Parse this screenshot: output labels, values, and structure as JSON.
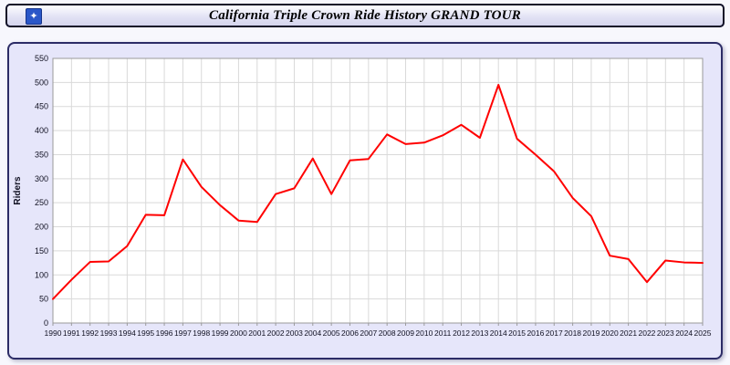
{
  "header": {
    "title": "California Triple Crown Ride History GRAND TOUR",
    "logo_glyph": "✦"
  },
  "chart_data": {
    "type": "line",
    "title": "California Triple Crown Ride History GRAND TOUR",
    "xlabel": "",
    "ylabel": "Riders",
    "ylim": [
      0,
      550
    ],
    "ytick_step": 50,
    "grid": true,
    "legend_position": "none",
    "x": [
      1990,
      1991,
      1992,
      1993,
      1994,
      1995,
      1996,
      1997,
      1998,
      1999,
      2000,
      2001,
      2002,
      2003,
      2004,
      2005,
      2006,
      2007,
      2008,
      2009,
      2010,
      2011,
      2012,
      2013,
      2014,
      2015,
      2016,
      2017,
      2018,
      2019,
      2020,
      2021,
      2022,
      2023,
      2024,
      2025
    ],
    "series": [
      {
        "name": "Riders",
        "color": "#ff0000",
        "values": [
          50,
          90,
          127,
          128,
          160,
          225,
          224,
          340,
          283,
          245,
          213,
          210,
          268,
          280,
          342,
          268,
          338,
          341,
          392,
          372,
          375,
          390,
          412,
          385,
          495,
          383,
          350,
          315,
          260,
          222,
          140,
          133,
          85,
          130,
          126,
          125
        ]
      }
    ],
    "colors": {
      "plot_background": "#ffffff",
      "panel_background": "#e6e6fa",
      "gridline": "#d9d9d9",
      "plot_border": "#9a9a9a",
      "axis_text": "#111122",
      "line": "#ff0000"
    }
  }
}
